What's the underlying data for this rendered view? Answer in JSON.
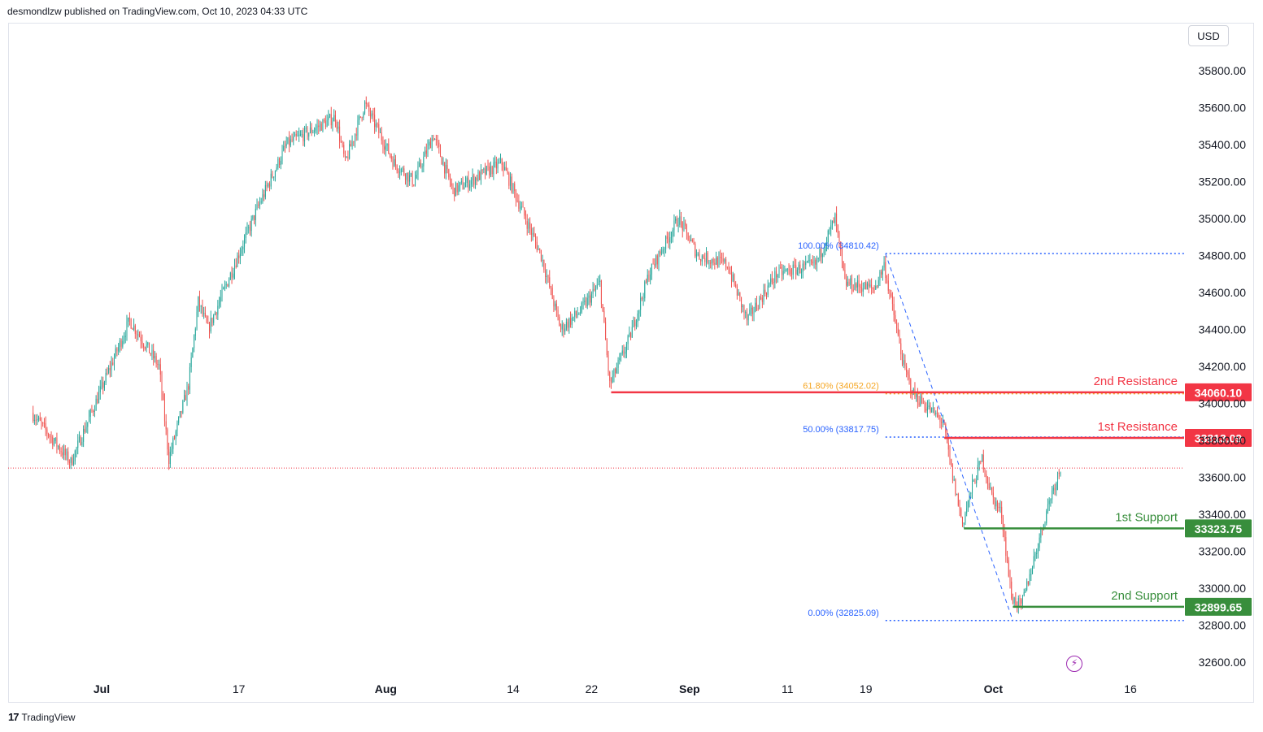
{
  "header": {
    "publisher_text": "desmondlzw published on TradingView.com, Oct 10, 2023 04:33 UTC"
  },
  "toolbar": {
    "currency": "USD"
  },
  "footer": {
    "brand": "TradingView",
    "logo": "17"
  },
  "colors": {
    "up": "#26a69a",
    "down": "#ef5350",
    "resistance": "#f23645",
    "support": "#388e3c",
    "fib_blue": "#2962ff",
    "fib_orange": "#f5a623",
    "grid_text": "#131722",
    "current_price_line": "#f23645"
  },
  "chart_data": {
    "type": "candlestick",
    "title": "",
    "y_axis": {
      "ticks": [
        "32600.00",
        "32800.00",
        "33000.00",
        "33200.00",
        "33400.00",
        "33600.00",
        "33800.00",
        "34000.00",
        "34200.00",
        "34400.00",
        "34600.00",
        "34800.00",
        "35000.00",
        "35200.00",
        "35400.00",
        "35600.00",
        "35800.00"
      ],
      "tick_values": [
        32600,
        32800,
        33000,
        33200,
        33400,
        33600,
        33800,
        34000,
        34200,
        34400,
        34600,
        34800,
        35000,
        35200,
        35400,
        35600,
        35800
      ],
      "range": [
        32450,
        35950
      ]
    },
    "x_axis": {
      "ticks": [
        "Jul",
        "17",
        "Aug",
        "14",
        "22",
        "Sep",
        "11",
        "19",
        "Oct",
        "16"
      ],
      "tick_dates": [
        "2023-07-03",
        "2023-07-17",
        "2023-08-01",
        "2023-08-14",
        "2023-08-22",
        "2023-09-01",
        "2023-09-11",
        "2023-09-19",
        "2023-10-02",
        "2023-10-16"
      ],
      "bold_ticks": [
        "Jul",
        "Aug",
        "Sep",
        "Oct"
      ],
      "range": [
        "2023-06-26",
        "2023-10-22"
      ]
    },
    "price_anchors": [
      {
        "date": "2023-06-26",
        "price": 33950
      },
      {
        "date": "2023-06-30",
        "price": 33680
      },
      {
        "date": "2023-07-06",
        "price": 34450
      },
      {
        "date": "2023-07-09",
        "price": 34200
      },
      {
        "date": "2023-07-10",
        "price": 33700
      },
      {
        "date": "2023-07-12",
        "price": 34100
      },
      {
        "date": "2023-07-13",
        "price": 34550
      },
      {
        "date": "2023-07-14",
        "price": 34400
      },
      {
        "date": "2023-07-19",
        "price": 35050
      },
      {
        "date": "2023-07-22",
        "price": 35400
      },
      {
        "date": "2023-07-27",
        "price": 35550
      },
      {
        "date": "2023-07-28",
        "price": 35300
      },
      {
        "date": "2023-07-30",
        "price": 35620
      },
      {
        "date": "2023-08-02",
        "price": 35300
      },
      {
        "date": "2023-08-04",
        "price": 35200
      },
      {
        "date": "2023-08-06",
        "price": 35450
      },
      {
        "date": "2023-08-08",
        "price": 35150
      },
      {
        "date": "2023-08-13",
        "price": 35300
      },
      {
        "date": "2023-08-17",
        "price": 34800
      },
      {
        "date": "2023-08-19",
        "price": 34400
      },
      {
        "date": "2023-08-21",
        "price": 34500
      },
      {
        "date": "2023-08-23",
        "price": 34650
      },
      {
        "date": "2023-08-24",
        "price": 34100
      },
      {
        "date": "2023-08-26",
        "price": 34350
      },
      {
        "date": "2023-08-28",
        "price": 34700
      },
      {
        "date": "2023-08-31",
        "price": 35000
      },
      {
        "date": "2023-09-02",
        "price": 34800
      },
      {
        "date": "2023-09-05",
        "price": 34750
      },
      {
        "date": "2023-09-07",
        "price": 34450
      },
      {
        "date": "2023-09-10",
        "price": 34700
      },
      {
        "date": "2023-09-14",
        "price": 34750
      },
      {
        "date": "2023-09-16",
        "price": 35000
      },
      {
        "date": "2023-09-17",
        "price": 34650
      },
      {
        "date": "2023-09-20",
        "price": 34620
      },
      {
        "date": "2023-09-21",
        "price": 34750
      },
      {
        "date": "2023-09-23",
        "price": 34200
      },
      {
        "date": "2023-09-24",
        "price": 34050
      },
      {
        "date": "2023-09-27",
        "price": 33900
      },
      {
        "date": "2023-09-28",
        "price": 33600
      },
      {
        "date": "2023-09-29",
        "price": 33350
      },
      {
        "date": "2023-09-30",
        "price": 33550
      },
      {
        "date": "2023-10-01",
        "price": 33700
      },
      {
        "date": "2023-10-02",
        "price": 33500
      },
      {
        "date": "2023-10-03",
        "price": 33400
      },
      {
        "date": "2023-10-04",
        "price": 32950
      },
      {
        "date": "2023-10-05",
        "price": 32900
      },
      {
        "date": "2023-10-06",
        "price": 33100
      },
      {
        "date": "2023-10-07",
        "price": 33300
      },
      {
        "date": "2023-10-08",
        "price": 33500
      },
      {
        "date": "2023-10-09",
        "price": 33650
      }
    ],
    "last_price": 33650,
    "levels": [
      {
        "name": "2nd Resistance",
        "value": "34060.10",
        "price": 34060.1,
        "kind": "resistance",
        "start_date": "2023-08-24"
      },
      {
        "name": "1st Resistance",
        "value": "33813.09",
        "price": 33813.09,
        "kind": "resistance",
        "start_date": "2023-09-27"
      },
      {
        "name": "1st Support",
        "value": "33323.75",
        "price": 33323.75,
        "kind": "support",
        "start_date": "2023-09-29"
      },
      {
        "name": "2nd Support",
        "value": "32899.65",
        "price": 32899.65,
        "kind": "support",
        "start_date": "2023-10-04"
      }
    ],
    "fib": {
      "start_date": "2023-09-21",
      "high_date": "2023-09-21",
      "low_date": "2023-10-04",
      "levels": [
        {
          "label": "100.00% (34810.42)",
          "price": 34810.42,
          "color": "blue"
        },
        {
          "label": "61.80% (34052.02)",
          "price": 34052.02,
          "color": "orange"
        },
        {
          "label": "50.00% (33817.75)",
          "price": 33817.75,
          "color": "blue"
        },
        {
          "label": "0.00% (32825.09)",
          "price": 32825.09,
          "color": "blue"
        }
      ]
    }
  }
}
